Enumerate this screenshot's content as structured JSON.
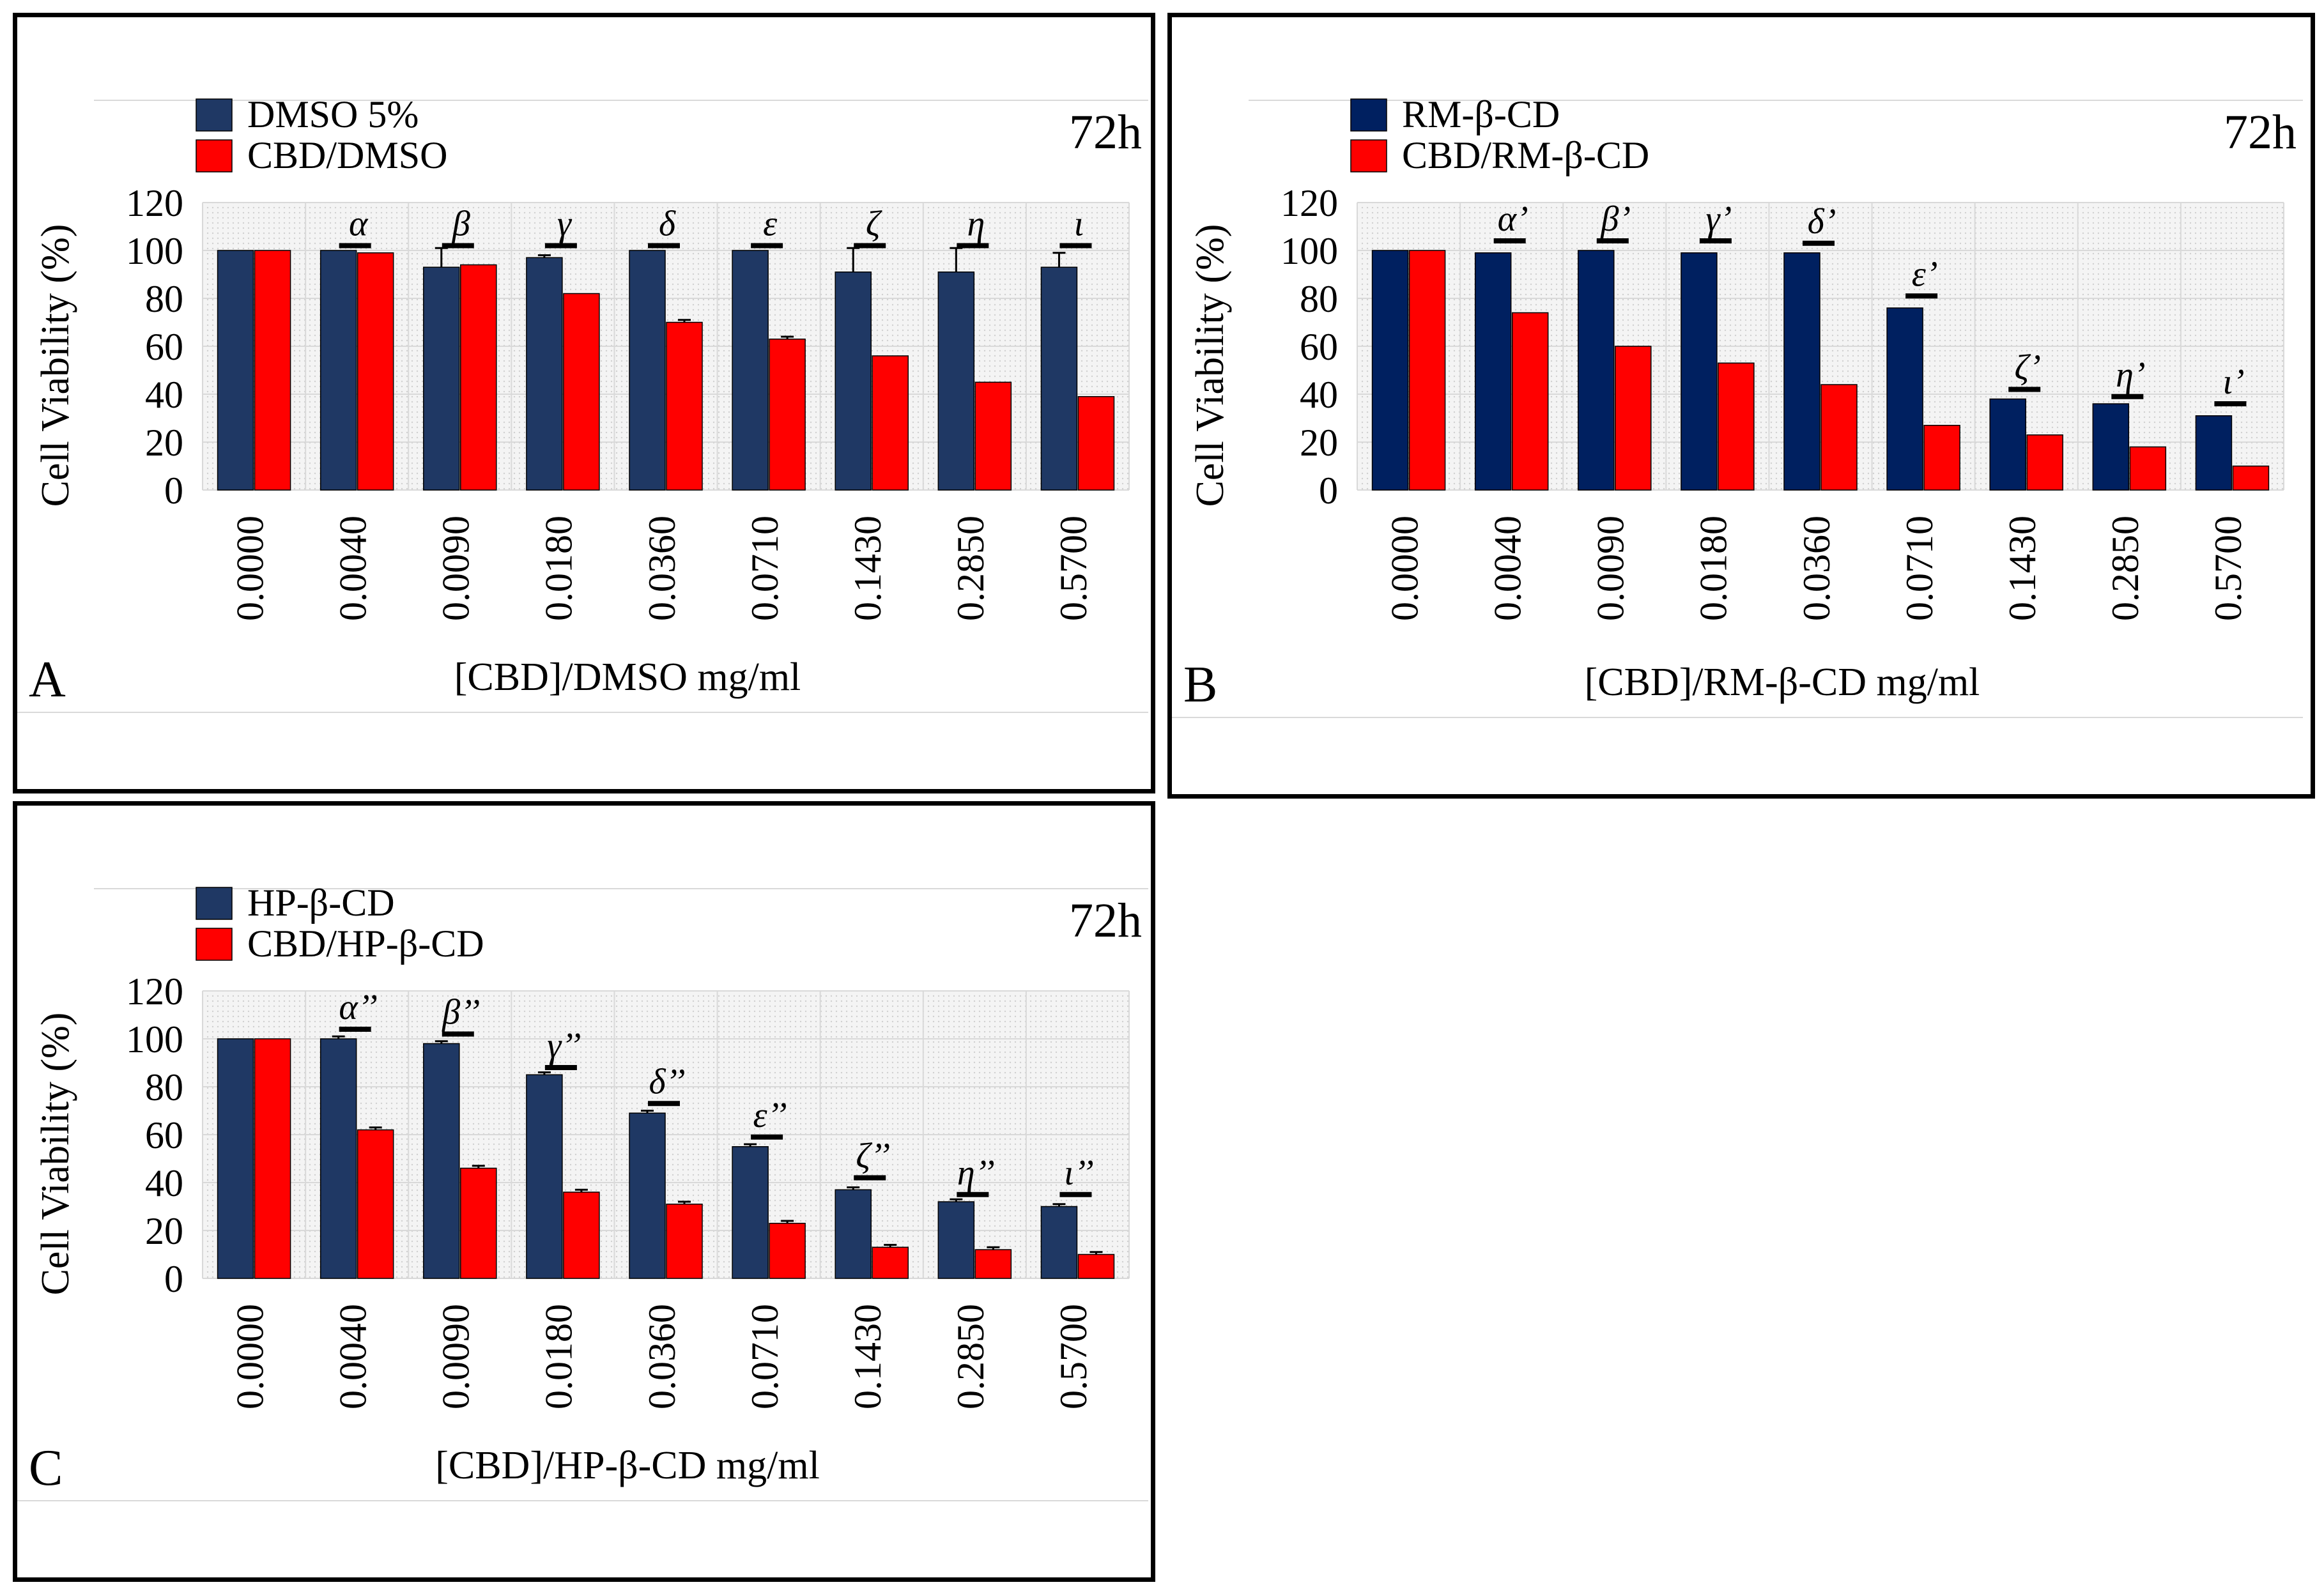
{
  "colors": {
    "vehicle_a": "#1f3864",
    "vehicle_b": "#002060",
    "cbd": "#ff0000",
    "grid": "#d9d9d9",
    "frame": "#000000"
  },
  "chart_data": [
    {
      "panel_label": "A",
      "type": "bar",
      "time_label": "72h",
      "categories": [
        "0.0000",
        "0.0040",
        "0.0090",
        "0.0180",
        "0.0360",
        "0.0710",
        "0.1430",
        "0.2850",
        "0.5700"
      ],
      "series": [
        {
          "name": "DMSO 5%",
          "values": [
            100,
            100,
            93,
            97,
            100,
            100,
            91,
            91,
            93
          ],
          "errors": [
            0,
            0,
            8,
            1,
            0,
            0,
            10,
            10,
            6
          ]
        },
        {
          "name": "CBD/DMSO",
          "values": [
            100,
            99,
            94,
            82,
            70,
            63,
            56,
            45,
            39
          ],
          "errors": [
            0,
            0,
            0,
            0,
            1,
            1,
            0,
            0,
            0
          ]
        }
      ],
      "significance": [
        "",
        "α",
        "β",
        "γ",
        "δ",
        "ε",
        "ζ",
        "η",
        "ι"
      ],
      "sig_height": [
        0,
        102,
        102,
        102,
        102,
        102,
        102,
        102,
        102
      ],
      "xlabel": "[CBD]/DMSO mg/ml",
      "ylabel": "Cell Viability (%)",
      "ylim": [
        0,
        120
      ],
      "yticks": [
        0,
        20,
        40,
        60,
        80,
        100,
        120
      ]
    },
    {
      "panel_label": "B",
      "type": "bar",
      "time_label": "72h",
      "categories": [
        "0.0000",
        "0.0040",
        "0.0090",
        "0.0180",
        "0.0360",
        "0.0710",
        "0.1430",
        "0.2850",
        "0.5700"
      ],
      "series": [
        {
          "name": "RM-β-CD",
          "values": [
            100,
            99,
            100,
            99,
            99,
            76,
            38,
            36,
            31
          ],
          "errors": [
            0,
            0,
            0,
            0,
            0,
            0,
            0,
            0,
            0
          ]
        },
        {
          "name": "CBD/RM-β-CD",
          "values": [
            100,
            74,
            60,
            53,
            44,
            27,
            23,
            18,
            10
          ],
          "errors": [
            0,
            0,
            0,
            0,
            0,
            0,
            0,
            0,
            0
          ]
        }
      ],
      "significance": [
        "",
        "α’",
        "β’",
        "γ’",
        "δ’",
        "ε’",
        "ζ’",
        "η’",
        "ι’"
      ],
      "sig_height": [
        0,
        104,
        104,
        104,
        103,
        81,
        42,
        39,
        36
      ],
      "xlabel": "[CBD]/RM-β-CD mg/ml",
      "ylabel": "Cell Viability (%)",
      "ylim": [
        0,
        120
      ],
      "yticks": [
        0,
        20,
        40,
        60,
        80,
        100,
        120
      ]
    },
    {
      "panel_label": "C",
      "type": "bar",
      "time_label": "72h",
      "categories": [
        "0.0000",
        "0.0040",
        "0.0090",
        "0.0180",
        "0.0360",
        "0.0710",
        "0.1430",
        "0.2850",
        "0.5700"
      ],
      "series": [
        {
          "name": "HP-β-CD",
          "values": [
            100,
            100,
            98,
            85,
            69,
            55,
            37,
            32,
            30
          ],
          "errors": [
            0,
            1,
            1,
            1,
            1,
            1,
            1,
            1,
            1
          ]
        },
        {
          "name": "CBD/HP-β-CD",
          "values": [
            100,
            62,
            46,
            36,
            31,
            23,
            13,
            12,
            10
          ],
          "errors": [
            0,
            1,
            1,
            1,
            1,
            1,
            1,
            1,
            1
          ]
        }
      ],
      "significance": [
        "",
        "α’’",
        "β’’",
        "γ’’",
        "δ’’",
        "ε’’",
        "ζ’’",
        "η’’",
        "ι’’"
      ],
      "sig_height": [
        0,
        104,
        102,
        88,
        73,
        59,
        42,
        35,
        35
      ],
      "xlabel": "[CBD]/HP-β-CD mg/ml",
      "ylabel": "Cell Viability (%)",
      "ylim": [
        0,
        120
      ],
      "yticks": [
        0,
        20,
        40,
        60,
        80,
        100,
        120
      ]
    }
  ]
}
